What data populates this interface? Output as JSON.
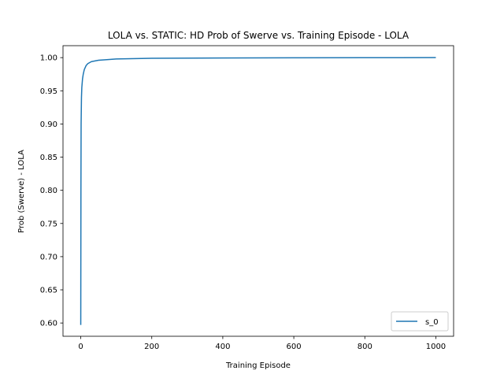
{
  "chart_data": {
    "type": "line",
    "title": "LOLA vs. STATIC: HD Prob of Swerve vs. Training Episode - LOLA",
    "xlabel": "Training Episode",
    "ylabel": "Prob (Swerve) - LOLA",
    "xlim": [
      -50,
      1050
    ],
    "ylim": [
      0.58,
      1.018
    ],
    "xticks": [
      0,
      200,
      400,
      600,
      800,
      1000
    ],
    "xtick_labels": [
      "0",
      "200",
      "400",
      "600",
      "800",
      "1000"
    ],
    "yticks": [
      0.6,
      0.65,
      0.7,
      0.75,
      0.8,
      0.85,
      0.9,
      0.95,
      1.0
    ],
    "ytick_labels": [
      "0.60",
      "0.65",
      "0.70",
      "0.75",
      "0.80",
      "0.85",
      "0.90",
      "0.95",
      "1.00"
    ],
    "grid": false,
    "legend_position": "bottom-right",
    "series": [
      {
        "name": "s_0",
        "color": "#1f77b4",
        "x": [
          0,
          0.5,
          1,
          2,
          3,
          5,
          7,
          10,
          15,
          20,
          30,
          50,
          100,
          200,
          400,
          600,
          800,
          1000
        ],
        "y": [
          0.597,
          0.8,
          0.9,
          0.94,
          0.955,
          0.968,
          0.975,
          0.982,
          0.988,
          0.991,
          0.994,
          0.996,
          0.998,
          0.999,
          0.9995,
          0.9998,
          0.9999,
          1.0
        ]
      }
    ]
  }
}
